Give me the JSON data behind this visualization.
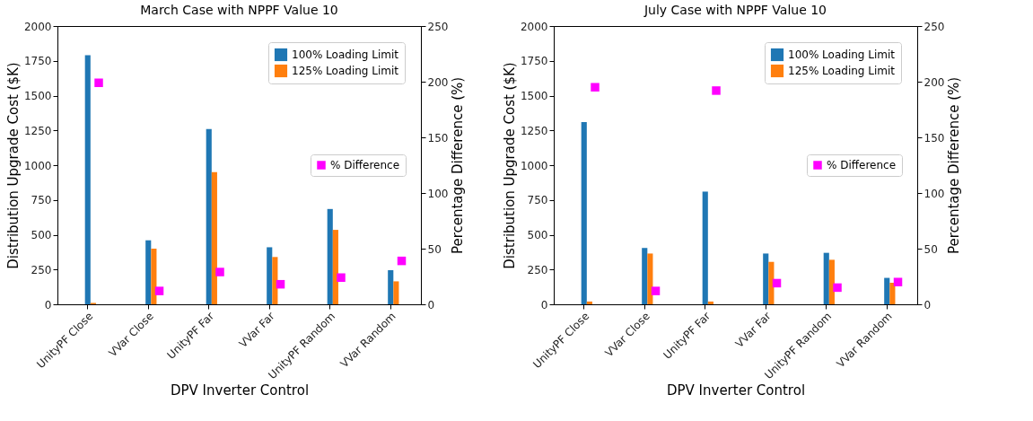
{
  "chart_data": [
    {
      "type": "bar",
      "title": "March Case with NPPF Value 10",
      "xlabel": "DPV Inverter Control",
      "ylabel": "Distribution Upgrade Cost ($K)",
      "y2label": "Percentage Difference (%)",
      "categories": [
        "UnityPF Close",
        "VVar Close",
        "UnityPF Far",
        "VVar Far",
        "UnityPF Random",
        "VVar Random"
      ],
      "series": [
        {
          "name": "100% Loading Limit",
          "color": "#1f77b4",
          "values": [
            1790,
            460,
            1260,
            410,
            685,
            245
          ]
        },
        {
          "name": "125% Loading Limit",
          "color": "#ff7f0e",
          "values": [
            10,
            400,
            950,
            340,
            535,
            165
          ]
        },
        {
          "name": "% Difference",
          "type": "scatter",
          "axis": "y2",
          "marker": "square",
          "color": "#ff00ff",
          "values": [
            199,
            12,
            29,
            18,
            24,
            39
          ]
        }
      ],
      "ylim": [
        0,
        2000
      ],
      "yticks": [
        0,
        250,
        500,
        750,
        1000,
        1250,
        1500,
        1750,
        2000
      ],
      "y2lim": [
        0,
        250
      ],
      "y2ticks": [
        0,
        50,
        100,
        150,
        200,
        250
      ],
      "legend": "top right"
    },
    {
      "type": "bar",
      "title": "July Case with NPPF Value 10",
      "xlabel": "DPV Inverter Control",
      "ylabel": "Distribution Upgrade Cost ($K)",
      "y2label": "Percentage Difference (%)",
      "categories": [
        "UnityPF Close",
        "VVar Close",
        "UnityPF Far",
        "VVar Far",
        "UnityPF Random",
        "VVar Random"
      ],
      "series": [
        {
          "name": "100% Loading Limit",
          "color": "#1f77b4",
          "values": [
            1310,
            405,
            810,
            365,
            370,
            190
          ]
        },
        {
          "name": "125% Loading Limit",
          "color": "#ff7f0e",
          "values": [
            20,
            365,
            20,
            305,
            320,
            155
          ]
        },
        {
          "name": "% Difference",
          "type": "scatter",
          "axis": "y2",
          "marker": "square",
          "color": "#ff00ff",
          "values": [
            195,
            12,
            192,
            19,
            15,
            20
          ]
        }
      ],
      "ylim": [
        0,
        2000
      ],
      "yticks": [
        0,
        250,
        500,
        750,
        1000,
        1250,
        1500,
        1750,
        2000
      ],
      "y2lim": [
        0,
        250
      ],
      "y2ticks": [
        0,
        50,
        100,
        150,
        200,
        250
      ],
      "legend": "top right"
    }
  ]
}
